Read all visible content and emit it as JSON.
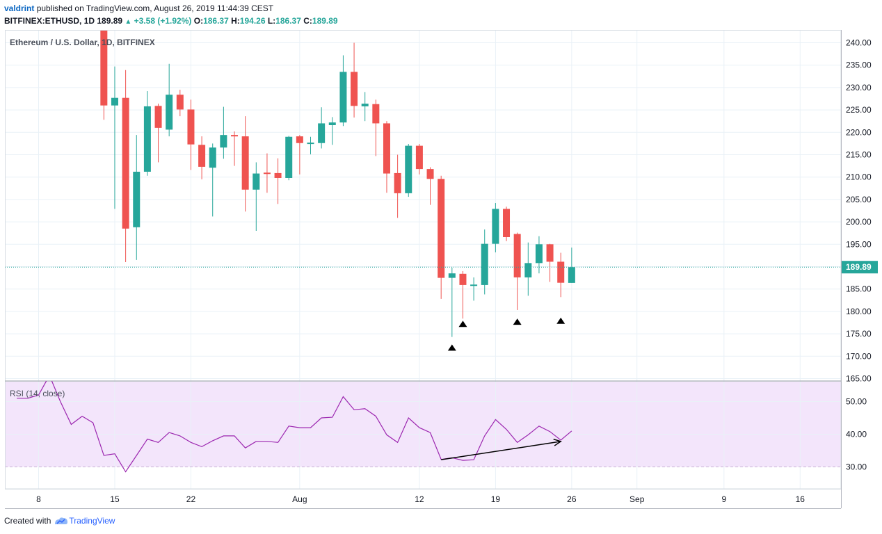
{
  "header": {
    "user": "valdrint",
    "published_text": "published on TradingView.com, August 26, 2019 11:44:39 CEST",
    "symbol": "BITFINEX:ETHUSD, 1D",
    "last": "189.89",
    "change": "+3.58 (+1.92%)",
    "o_label": "O:",
    "o_value": "186.37",
    "h_label": "H:",
    "h_value": "194.26",
    "l_label": "L:",
    "l_value": "186.37",
    "c_label": "C:",
    "c_value": "189.89"
  },
  "footer": {
    "created_with": "Created with",
    "brand": "TradingView"
  },
  "colors": {
    "up": "#26a69a",
    "down": "#ef5350",
    "rsi_line": "#9c27b0",
    "rsi_band": "#f3e5fb",
    "grid": "#e9f1f7",
    "price_line": "#26a69a",
    "price_tag": "#26a69a"
  },
  "chart_data": [
    {
      "type": "candlestick",
      "title": "Ethereum / U.S. Dollar, 1D, BITFINEX",
      "ylim": [
        164,
        243
      ],
      "y_ticks": [
        "240.00",
        "235.00",
        "230.00",
        "225.00",
        "220.00",
        "215.00",
        "210.00",
        "205.00",
        "200.00",
        "195.00",
        "190.00",
        "185.00",
        "180.00",
        "175.00",
        "170.00",
        "165.00"
      ],
      "x_ticks": [
        {
          "label": "8",
          "date": "2019-07-08"
        },
        {
          "label": "15",
          "date": "2019-07-15"
        },
        {
          "label": "22",
          "date": "2019-07-22"
        },
        {
          "label": "Aug",
          "date": "2019-08-01"
        },
        {
          "label": "12",
          "date": "2019-08-12"
        },
        {
          "label": "19",
          "date": "2019-08-19"
        },
        {
          "label": "26",
          "date": "2019-08-26"
        },
        {
          "label": "Sep",
          "date": "2019-09-01"
        },
        {
          "label": "9",
          "date": "2019-09-09"
        },
        {
          "label": "16",
          "date": "2019-09-16"
        }
      ],
      "last_price": "189.89",
      "candles": [
        {
          "date": "2019-07-14",
          "o": 243.0,
          "h": 250.0,
          "l": 222.8,
          "c": 226.0
        },
        {
          "date": "2019-07-15",
          "o": 226.0,
          "h": 234.7,
          "l": 202.9,
          "c": 227.7
        },
        {
          "date": "2019-07-16",
          "o": 227.7,
          "h": 233.9,
          "l": 191.0,
          "c": 198.5
        },
        {
          "date": "2019-07-17",
          "o": 198.8,
          "h": 219.4,
          "l": 191.5,
          "c": 211.2
        },
        {
          "date": "2019-07-18",
          "o": 211.2,
          "h": 229.2,
          "l": 210.3,
          "c": 225.8
        },
        {
          "date": "2019-07-19",
          "o": 225.9,
          "h": 226.4,
          "l": 213.3,
          "c": 221.0
        },
        {
          "date": "2019-07-20",
          "o": 220.6,
          "h": 235.3,
          "l": 219.1,
          "c": 228.4
        },
        {
          "date": "2019-07-21",
          "o": 228.4,
          "h": 229.5,
          "l": 223.6,
          "c": 225.1
        },
        {
          "date": "2019-07-22",
          "o": 225.1,
          "h": 227.3,
          "l": 211.6,
          "c": 217.3
        },
        {
          "date": "2019-07-23",
          "o": 217.2,
          "h": 219.1,
          "l": 209.5,
          "c": 212.3
        },
        {
          "date": "2019-07-24",
          "o": 212.1,
          "h": 217.5,
          "l": 201.2,
          "c": 216.6
        },
        {
          "date": "2019-07-25",
          "o": 216.6,
          "h": 225.7,
          "l": 214.1,
          "c": 219.4
        },
        {
          "date": "2019-07-26",
          "o": 219.4,
          "h": 220.2,
          "l": 212.5,
          "c": 219.3
        },
        {
          "date": "2019-07-27",
          "o": 219.1,
          "h": 223.6,
          "l": 202.3,
          "c": 207.2
        },
        {
          "date": "2019-07-28",
          "o": 207.2,
          "h": 213.3,
          "l": 198.0,
          "c": 210.8
        },
        {
          "date": "2019-07-29",
          "o": 211.0,
          "h": 215.3,
          "l": 206.5,
          "c": 210.9
        },
        {
          "date": "2019-07-30",
          "o": 210.9,
          "h": 214.2,
          "l": 204.0,
          "c": 209.8
        },
        {
          "date": "2019-07-31",
          "o": 209.8,
          "h": 219.2,
          "l": 209.3,
          "c": 219.0
        },
        {
          "date": "2019-08-01",
          "o": 219.1,
          "h": 219.4,
          "l": 210.6,
          "c": 217.6
        },
        {
          "date": "2019-08-02",
          "o": 217.6,
          "h": 219.0,
          "l": 215.1,
          "c": 217.7
        },
        {
          "date": "2019-08-03",
          "o": 217.6,
          "h": 225.6,
          "l": 216.4,
          "c": 222.0
        },
        {
          "date": "2019-08-04",
          "o": 221.6,
          "h": 223.4,
          "l": 217.2,
          "c": 222.2
        },
        {
          "date": "2019-08-05",
          "o": 222.2,
          "h": 237.2,
          "l": 221.4,
          "c": 233.5
        },
        {
          "date": "2019-08-06",
          "o": 233.5,
          "h": 240.0,
          "l": 223.3,
          "c": 225.9
        },
        {
          "date": "2019-08-07",
          "o": 225.8,
          "h": 229.0,
          "l": 222.5,
          "c": 226.4
        },
        {
          "date": "2019-08-08",
          "o": 226.3,
          "h": 227.3,
          "l": 214.7,
          "c": 222.0
        },
        {
          "date": "2019-08-09",
          "o": 222.0,
          "h": 222.5,
          "l": 206.5,
          "c": 210.8
        },
        {
          "date": "2019-08-10",
          "o": 210.9,
          "h": 215.0,
          "l": 200.9,
          "c": 206.4
        },
        {
          "date": "2019-08-11",
          "o": 206.4,
          "h": 217.4,
          "l": 205.6,
          "c": 217.0
        },
        {
          "date": "2019-08-12",
          "o": 217.0,
          "h": 217.4,
          "l": 210.6,
          "c": 211.8
        },
        {
          "date": "2019-08-13",
          "o": 211.8,
          "h": 212.2,
          "l": 203.8,
          "c": 209.6
        },
        {
          "date": "2019-08-14",
          "o": 209.6,
          "h": 210.3,
          "l": 182.8,
          "c": 187.5
        },
        {
          "date": "2019-08-15",
          "o": 187.5,
          "h": 189.8,
          "l": 174.3,
          "c": 188.5
        },
        {
          "date": "2019-08-16",
          "o": 188.4,
          "h": 189.0,
          "l": 178.4,
          "c": 185.9
        },
        {
          "date": "2019-08-17",
          "o": 185.9,
          "h": 187.6,
          "l": 182.4,
          "c": 186.0
        },
        {
          "date": "2019-08-18",
          "o": 185.9,
          "h": 198.3,
          "l": 183.8,
          "c": 195.1
        },
        {
          "date": "2019-08-19",
          "o": 195.1,
          "h": 204.2,
          "l": 193.2,
          "c": 202.9
        },
        {
          "date": "2019-08-20",
          "o": 202.9,
          "h": 203.4,
          "l": 195.7,
          "c": 196.6
        },
        {
          "date": "2019-08-21",
          "o": 197.3,
          "h": 197.6,
          "l": 180.3,
          "c": 187.6
        },
        {
          "date": "2019-08-22",
          "o": 187.6,
          "h": 195.4,
          "l": 183.5,
          "c": 190.8
        },
        {
          "date": "2019-08-23",
          "o": 190.8,
          "h": 196.8,
          "l": 188.5,
          "c": 195.0
        },
        {
          "date": "2019-08-24",
          "o": 195.0,
          "h": 195.1,
          "l": 186.6,
          "c": 191.1
        },
        {
          "date": "2019-08-25",
          "o": 191.1,
          "h": 193.1,
          "l": 183.2,
          "c": 186.4
        },
        {
          "date": "2019-08-26",
          "o": 186.37,
          "h": 194.26,
          "l": 186.37,
          "c": 189.89
        }
      ],
      "markers": [
        {
          "date": "2019-08-15",
          "price": 172.0,
          "shape": "triangle-up"
        },
        {
          "date": "2019-08-16",
          "price": 177.3,
          "shape": "triangle-up"
        },
        {
          "date": "2019-08-21",
          "price": 177.8,
          "shape": "triangle-up"
        },
        {
          "date": "2019-08-25",
          "price": 178.0,
          "shape": "triangle-up"
        }
      ]
    },
    {
      "type": "line",
      "title": "RSI (14, close)",
      "ylim": [
        24,
        58
      ],
      "y_ticks": [
        "50.00",
        "40.00",
        "30.00"
      ],
      "band": [
        30,
        70
      ],
      "series": [
        {
          "points": [
            {
              "date": "2019-07-06",
              "y": 51
            },
            {
              "date": "2019-07-07",
              "y": 51
            },
            {
              "date": "2019-07-08",
              "y": 52
            },
            {
              "date": "2019-07-09",
              "y": 58
            },
            {
              "date": "2019-07-10",
              "y": 50
            },
            {
              "date": "2019-07-11",
              "y": 43
            },
            {
              "date": "2019-07-12",
              "y": 45.5
            },
            {
              "date": "2019-07-13",
              "y": 43.5
            },
            {
              "date": "2019-07-14",
              "y": 33.5
            },
            {
              "date": "2019-07-15",
              "y": 34
            },
            {
              "date": "2019-07-16",
              "y": 28.5
            },
            {
              "date": "2019-07-17",
              "y": 33.5
            },
            {
              "date": "2019-07-18",
              "y": 38.5
            },
            {
              "date": "2019-07-19",
              "y": 37.5
            },
            {
              "date": "2019-07-20",
              "y": 40.5
            },
            {
              "date": "2019-07-21",
              "y": 39.5
            },
            {
              "date": "2019-07-22",
              "y": 37.5
            },
            {
              "date": "2019-07-23",
              "y": 36.2
            },
            {
              "date": "2019-07-24",
              "y": 38
            },
            {
              "date": "2019-07-25",
              "y": 39.5
            },
            {
              "date": "2019-07-26",
              "y": 39.5
            },
            {
              "date": "2019-07-27",
              "y": 35.8
            },
            {
              "date": "2019-07-28",
              "y": 37.8
            },
            {
              "date": "2019-07-29",
              "y": 37.8
            },
            {
              "date": "2019-07-30",
              "y": 37.5
            },
            {
              "date": "2019-07-31",
              "y": 42.5
            },
            {
              "date": "2019-08-01",
              "y": 42
            },
            {
              "date": "2019-08-02",
              "y": 42
            },
            {
              "date": "2019-08-03",
              "y": 45
            },
            {
              "date": "2019-08-04",
              "y": 45.2
            },
            {
              "date": "2019-08-05",
              "y": 51.5
            },
            {
              "date": "2019-08-06",
              "y": 47.5
            },
            {
              "date": "2019-08-07",
              "y": 47.8
            },
            {
              "date": "2019-08-08",
              "y": 45.5
            },
            {
              "date": "2019-08-09",
              "y": 39.8
            },
            {
              "date": "2019-08-10",
              "y": 37.5
            },
            {
              "date": "2019-08-11",
              "y": 45
            },
            {
              "date": "2019-08-12",
              "y": 42
            },
            {
              "date": "2019-08-13",
              "y": 40.5
            },
            {
              "date": "2019-08-14",
              "y": 32.3
            },
            {
              "date": "2019-08-15",
              "y": 32.8
            },
            {
              "date": "2019-08-16",
              "y": 32
            },
            {
              "date": "2019-08-17",
              "y": 32.2
            },
            {
              "date": "2019-08-18",
              "y": 39.5
            },
            {
              "date": "2019-08-19",
              "y": 44.5
            },
            {
              "date": "2019-08-20",
              "y": 41.5
            },
            {
              "date": "2019-08-21",
              "y": 37.5
            },
            {
              "date": "2019-08-22",
              "y": 39.8
            },
            {
              "date": "2019-08-23",
              "y": 42.5
            },
            {
              "date": "2019-08-24",
              "y": 40.8
            },
            {
              "date": "2019-08-25",
              "y": 38.2
            },
            {
              "date": "2019-08-26",
              "y": 41
            }
          ]
        }
      ],
      "annotation_arrow": {
        "from": {
          "date": "2019-08-14",
          "y": 32.2
        },
        "to": {
          "date": "2019-08-25",
          "y": 37.8
        }
      }
    }
  ]
}
